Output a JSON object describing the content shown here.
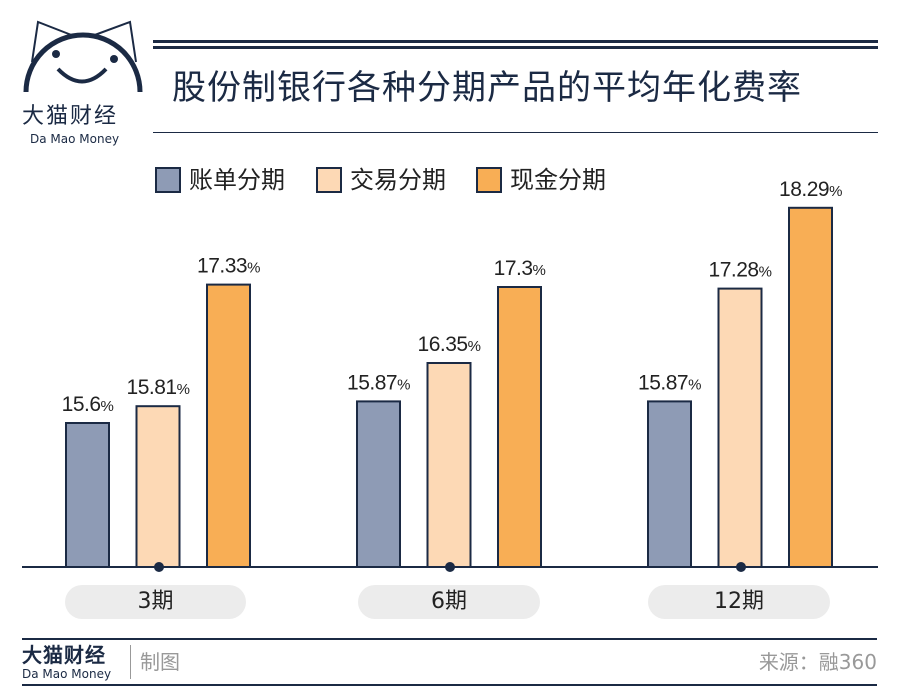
{
  "logo": {
    "cn": "大猫财经",
    "en": "Da Mao Money"
  },
  "footer": {
    "brand_cn": "大猫财经",
    "brand_en": "Da Mao Money",
    "made_by": "制图",
    "source": "来源：融360"
  },
  "colors": {
    "navy": "#1b2a44",
    "series": [
      "#8e9bb5",
      "#fdd9b5",
      "#f8ae55"
    ]
  },
  "chart_data": {
    "type": "bar",
    "title": "股份制银行各种分期产品的平均年化费率",
    "categories": [
      "3期",
      "6期",
      "12期"
    ],
    "series": [
      {
        "name": "账单分期",
        "values": [
          15.6,
          15.87,
          15.87
        ],
        "labels": [
          "15.6%",
          "15.87%",
          "15.87%"
        ]
      },
      {
        "name": "交易分期",
        "values": [
          15.81,
          16.35,
          17.28
        ],
        "labels": [
          "15.81%",
          "16.35%",
          "17.28%"
        ]
      },
      {
        "name": "现金分期",
        "values": [
          17.33,
          17.3,
          18.29
        ],
        "labels": [
          "17.33%",
          "17.3%",
          "18.29%"
        ]
      }
    ],
    "legend": "top-left",
    "grid": false
  }
}
